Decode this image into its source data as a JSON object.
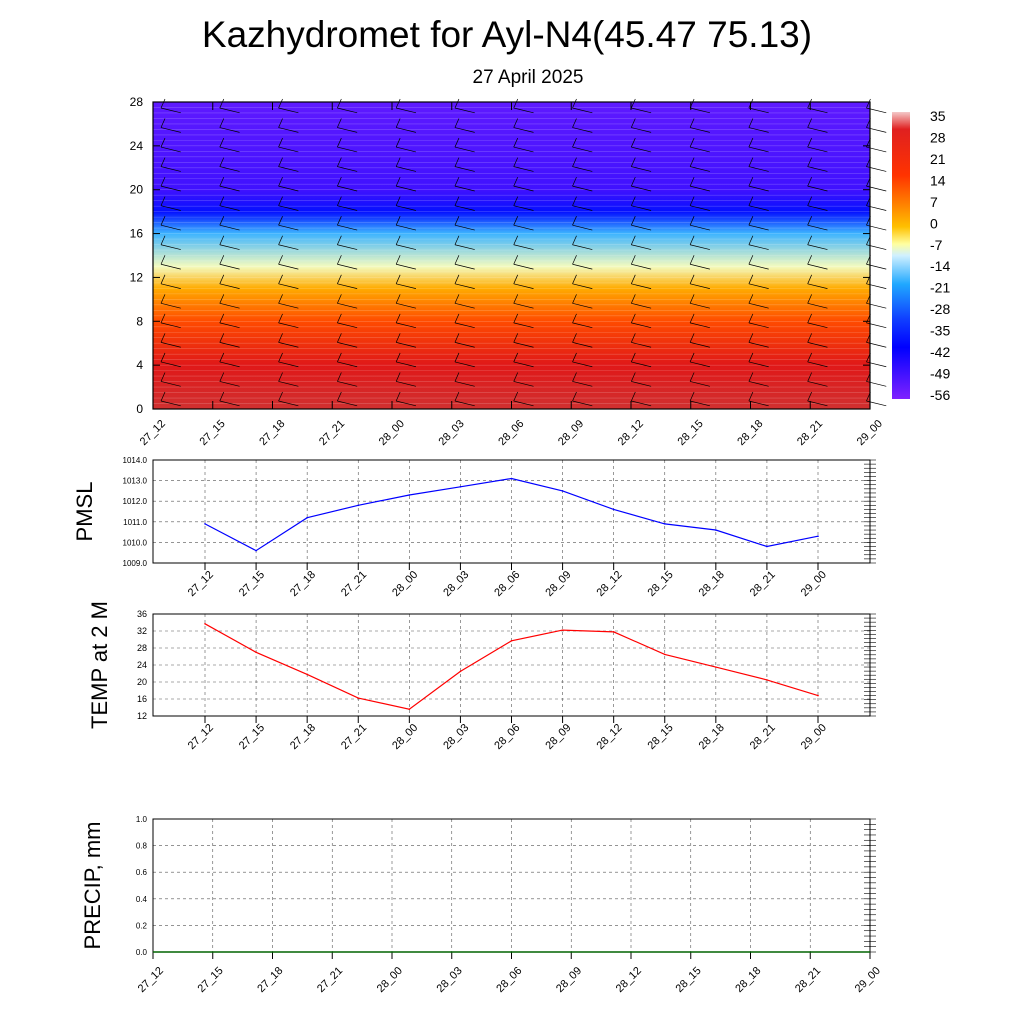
{
  "title": "Kazhydromet for Ayl-N4(45.47 75.13)",
  "subtitle": "27 April 2025",
  "time_labels": [
    "27_12",
    "27_15",
    "27_18",
    "27_21",
    "28_00",
    "28_03",
    "28_06",
    "28_09",
    "28_12",
    "28_15",
    "28_18",
    "28_21",
    "29_00"
  ],
  "chart_data": [
    {
      "type": "heatmap",
      "ylabel": "",
      "ylim": [
        0,
        28
      ],
      "yticks": [
        0,
        4,
        8,
        12,
        16,
        20,
        24,
        28
      ],
      "colorbar": {
        "labels": [
          "35",
          "28",
          "21",
          "14",
          "7",
          "0",
          "-7",
          "-14",
          "-21",
          "-28",
          "-35",
          "-42",
          "-49",
          "-56"
        ],
        "values": [
          35,
          28,
          21,
          14,
          7,
          0,
          -7,
          -14,
          -21,
          -28,
          -35,
          -42,
          -49,
          -56
        ]
      },
      "temperature_profile": [
        {
          "height": 0,
          "value": 30
        },
        {
          "height": 4,
          "value": 24
        },
        {
          "height": 8,
          "value": 12
        },
        {
          "height": 11,
          "value": 0
        },
        {
          "height": 13,
          "value": -14
        },
        {
          "height": 16,
          "value": -30
        },
        {
          "height": 18,
          "value": -50
        },
        {
          "height": 20,
          "value": -56
        },
        {
          "height": 28,
          "value": -58
        }
      ],
      "overlay": "wind barbs"
    },
    {
      "type": "line",
      "ylabel": "PMSL",
      "ylim": [
        1009.0,
        1014.0
      ],
      "yticks": [
        "1009.0",
        "1010.0",
        "1011.0",
        "1012.0",
        "1013.0",
        "1014.0"
      ],
      "color": "#0000ff",
      "values": [
        1010.9,
        1009.6,
        1011.2,
        1011.8,
        1012.3,
        1012.7,
        1013.1,
        1012.5,
        1011.6,
        1010.9,
        1010.6,
        1009.8,
        1010.3
      ]
    },
    {
      "type": "line",
      "ylabel": "TEMP at 2 M",
      "ylim": [
        12,
        36
      ],
      "yticks": [
        "12",
        "16",
        "20",
        "24",
        "28",
        "32",
        "36"
      ],
      "color": "#ff0000",
      "values": [
        33.7,
        27.0,
        21.8,
        16.2,
        13.6,
        22.5,
        29.7,
        32.2,
        31.8,
        26.5,
        23.5,
        20.5,
        16.8
      ]
    },
    {
      "type": "line",
      "ylabel": "PRECIP, mm",
      "ylim": [
        0.0,
        1.0
      ],
      "yticks": [
        "0.0",
        "0.2",
        "0.4",
        "0.6",
        "0.8",
        "1.0"
      ],
      "color": "#006400",
      "values": [
        0,
        0,
        0,
        0,
        0,
        0,
        0,
        0,
        0,
        0,
        0,
        0,
        0
      ]
    }
  ]
}
